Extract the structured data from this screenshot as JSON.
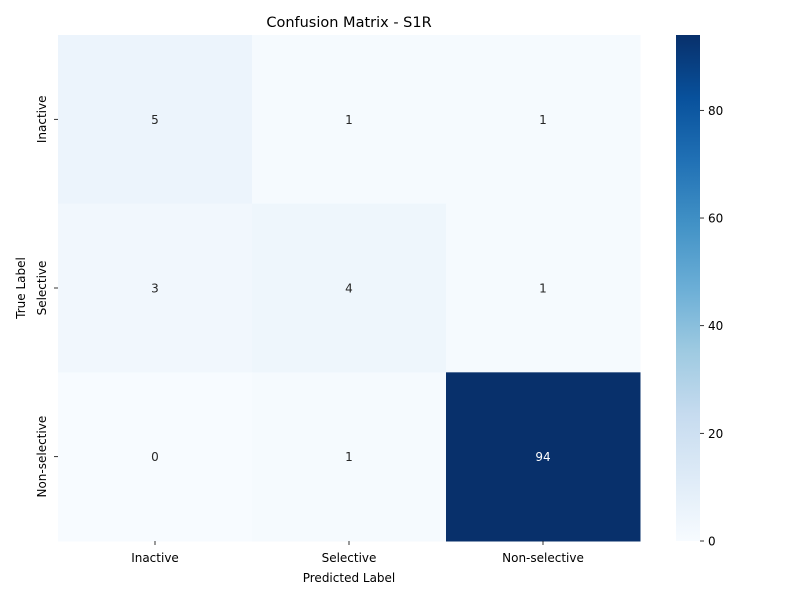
{
  "chart_data": {
    "type": "heatmap",
    "title": "Confusion Matrix - S1R",
    "xlabel": "Predicted Label",
    "ylabel": "True Label",
    "x_categories": [
      "Inactive",
      "Selective",
      "Non-selective"
    ],
    "y_categories": [
      "Inactive",
      "Selective",
      "Non-selective"
    ],
    "values": [
      [
        5,
        1,
        1
      ],
      [
        3,
        4,
        1
      ],
      [
        0,
        1,
        94
      ]
    ],
    "colorbar": {
      "min": 0,
      "max": 94,
      "ticks": [
        0,
        20,
        40,
        60,
        80
      ],
      "colormap": "Blues"
    },
    "annotations": true,
    "grid": false
  }
}
